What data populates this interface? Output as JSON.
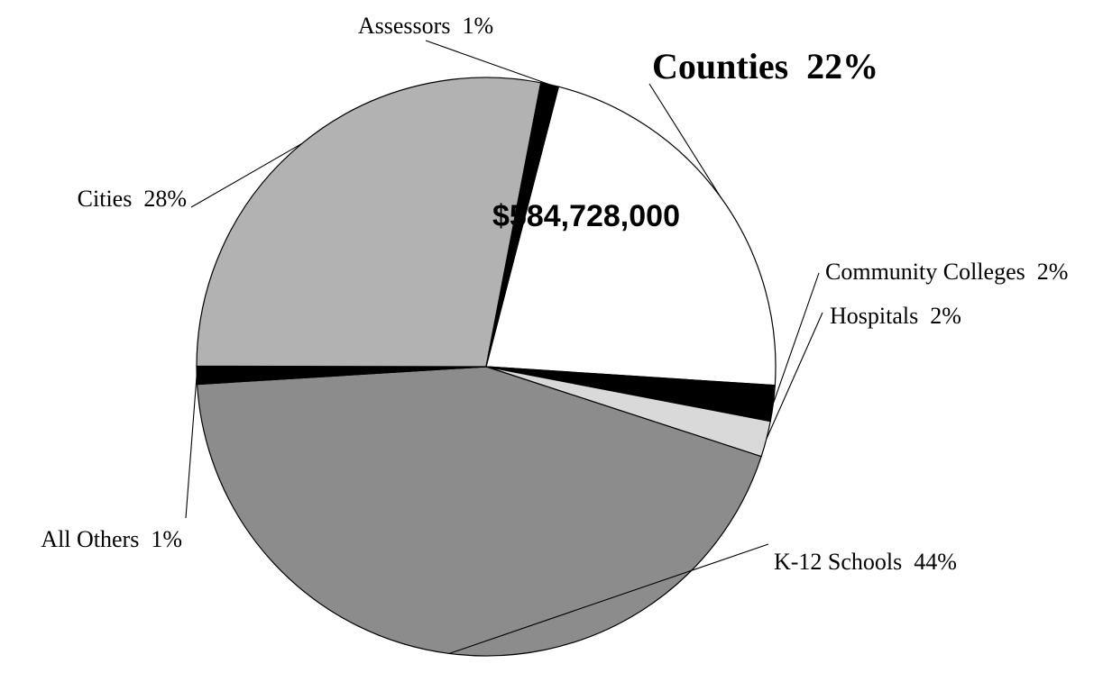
{
  "chart_data": {
    "type": "pie",
    "amount_label": "$584,728,000",
    "slices": [
      {
        "name": "Counties",
        "value": 22,
        "label": "Counties  22%",
        "color": "#ffffff",
        "emphasis": true
      },
      {
        "name": "Community Colleges",
        "value": 2,
        "label": "Community Colleges  2%",
        "color": "#000000"
      },
      {
        "name": "Hospitals",
        "value": 2,
        "label": "Hospitals  2%",
        "color": "#d9d9d9"
      },
      {
        "name": "K-12 Schools",
        "value": 44,
        "label": "K-12 Schools  44%",
        "color": "#8c8c8c"
      },
      {
        "name": "All Others",
        "value": 1,
        "label": "All Others  1%",
        "color": "#000000"
      },
      {
        "name": "Cities",
        "value": 28,
        "label": "Cities  28%",
        "color": "#b2b2b2"
      },
      {
        "name": "Assessors",
        "value": 1,
        "label": "Assessors  1%",
        "color": "#000000"
      }
    ]
  }
}
